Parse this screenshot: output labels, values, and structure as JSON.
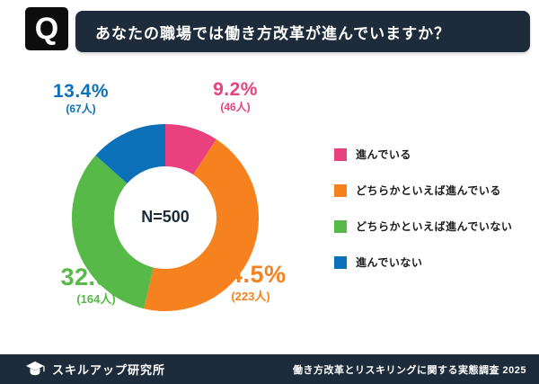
{
  "header": {
    "q_mark": "Q",
    "question": "あなたの職場では働き方改革が進んでいますか？"
  },
  "theme": {
    "navy": "#1d2b3a",
    "logo_black": "#0d0d0d",
    "white": "#ffffff"
  },
  "chart_data": {
    "type": "pie",
    "subtype": "donut",
    "title": "あなたの職場では働き方改革が進んでいますか？",
    "center_label": "N=500",
    "total_responses": 500,
    "unit": "人",
    "direction": "clockwise",
    "start_angle_deg": 0,
    "legend_position": "right",
    "segments": [
      {
        "label": "進んでいる",
        "pct": 9.2,
        "count": 46,
        "pct_label": "9.2%",
        "count_label": "(46人)",
        "color": "#e8417d"
      },
      {
        "label": "どちらかといえば進んでいる",
        "pct": 44.5,
        "count": 223,
        "pct_label": "44.5%",
        "count_label": "(223人)",
        "color": "#f5821f"
      },
      {
        "label": "どちらかといえば進んでいない",
        "pct": 32.9,
        "count": 164,
        "pct_label": "32.9%",
        "count_label": "(164人)",
        "color": "#57b947"
      },
      {
        "label": "進んでいない",
        "pct": 13.4,
        "count": 67,
        "pct_label": "13.4%",
        "count_label": "(67人)",
        "color": "#0d71b9"
      }
    ]
  },
  "footer": {
    "brand": "スキルアップ研究所",
    "source": "働き方改革とリスキリングに関する実態調査 2025"
  }
}
